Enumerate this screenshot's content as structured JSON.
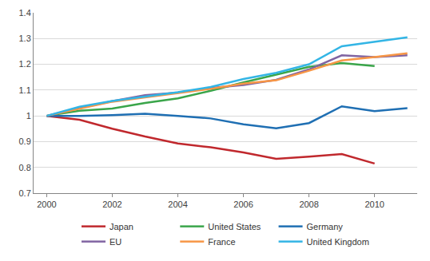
{
  "chart_data": {
    "type": "line",
    "x": [
      2000,
      2001,
      2002,
      2003,
      2004,
      2005,
      2006,
      2007,
      2008,
      2009,
      2010,
      2011
    ],
    "series": [
      {
        "name": "Japan",
        "color": "#c0282d",
        "values": [
          1.0,
          0.985,
          0.95,
          0.92,
          0.893,
          0.878,
          0.858,
          0.833,
          0.842,
          0.852,
          0.815,
          null
        ]
      },
      {
        "name": "United States",
        "color": "#3aa54a",
        "values": [
          1.0,
          1.02,
          1.028,
          1.05,
          1.068,
          1.097,
          1.13,
          1.16,
          1.19,
          1.205,
          1.193,
          null
        ]
      },
      {
        "name": "Germany",
        "color": "#1f6fb3",
        "values": [
          1.0,
          1.0,
          1.003,
          1.008,
          1.0,
          0.99,
          0.967,
          0.952,
          0.972,
          1.037,
          1.018,
          1.03
        ]
      },
      {
        "name": "EU",
        "color": "#8064a2",
        "values": [
          1.0,
          1.03,
          1.057,
          1.08,
          1.09,
          1.108,
          1.12,
          1.14,
          1.18,
          1.235,
          1.228,
          1.235
        ]
      },
      {
        "name": "France",
        "color": "#f79646",
        "values": [
          1.0,
          1.028,
          1.055,
          1.072,
          1.088,
          1.105,
          1.125,
          1.138,
          1.175,
          1.215,
          1.228,
          1.243
        ]
      },
      {
        "name": "United Kingdom",
        "color": "#33b5e5",
        "values": [
          1.0,
          1.035,
          1.058,
          1.075,
          1.092,
          1.112,
          1.143,
          1.167,
          1.2,
          1.27,
          1.287,
          1.305
        ]
      }
    ],
    "xlim": [
      1999.6,
      2011.3
    ],
    "xticks": [
      2000,
      2002,
      2004,
      2006,
      2008,
      2010
    ],
    "ylim": [
      0.7,
      1.4
    ],
    "yticks": [
      0.7,
      0.8,
      0.9,
      1,
      1.1,
      1.2,
      1.3,
      1.4
    ],
    "grid": true,
    "legend": "bottom"
  }
}
